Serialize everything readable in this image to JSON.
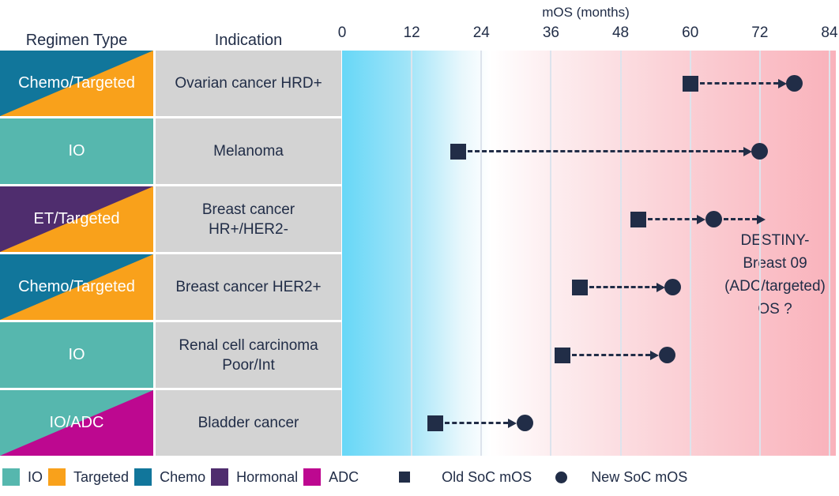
{
  "colors": {
    "io": "#56b7ae",
    "targeted": "#f9a11b",
    "chemo": "#11769b",
    "hormonal": "#4f2d6e",
    "adc": "#bd0890",
    "marker_navy": "#212d47",
    "cell_gray": "#d3d3d3",
    "gradient_left_cyan": "#67d7f7",
    "gradient_right_pink": "#f9b2bb",
    "gridline": "#dde3ec"
  },
  "table": {
    "regimen_header": "Regimen Type",
    "indication_header": "Indication",
    "rows": [
      {
        "regimen": "Chemo/Targeted",
        "color_keys": [
          "chemo",
          "targeted"
        ],
        "indication": "Ovarian cancer HRD+"
      },
      {
        "regimen": "IO",
        "color_keys": [
          "io"
        ],
        "indication": "Melanoma"
      },
      {
        "regimen": "ET/Targeted",
        "color_keys": [
          "hormonal",
          "targeted"
        ],
        "indication": "Breast cancer\nHR+/HER2-"
      },
      {
        "regimen": "Chemo/Targeted",
        "color_keys": [
          "chemo",
          "targeted"
        ],
        "indication": "Breast cancer HER2+"
      },
      {
        "regimen": "IO",
        "color_keys": [
          "io"
        ],
        "indication": "Renal cell carcinoma\nPoor/Int"
      },
      {
        "regimen": "IO/ADC",
        "color_keys": [
          "io",
          "adc"
        ],
        "indication": "Bladder cancer"
      }
    ]
  },
  "axis": {
    "title": "mOS (months)",
    "ticks": [
      0,
      12,
      24,
      36,
      48,
      60,
      72,
      84
    ],
    "max": 84
  },
  "annotation": {
    "lines": [
      "DESTINY-",
      "Breast 09",
      "(ADC/targeted)",
      "OS ?"
    ]
  },
  "legend": {
    "regimen_items": [
      {
        "label": "IO",
        "color_key": "io"
      },
      {
        "label": "Targeted",
        "color_key": "targeted"
      },
      {
        "label": "Chemo",
        "color_key": "chemo"
      },
      {
        "label": "Hormonal",
        "color_key": "hormonal"
      },
      {
        "label": "ADC",
        "color_key": "adc"
      }
    ],
    "old_label": "Old SoC mOS",
    "new_label": "New SoC mOS"
  },
  "chart_data": {
    "type": "scatter",
    "subtype": "dumbbell-arrow",
    "title": "mOS (months)",
    "xlabel": "mOS (months)",
    "xlim": [
      0,
      84
    ],
    "xticks": [
      0,
      12,
      24,
      36,
      48,
      60,
      72,
      84
    ],
    "grid": "vertical gridlines every 12 months",
    "background": "horizontal gradient cyan (low mOS) to pink (high mOS)",
    "categories": [
      "Ovarian cancer HRD+",
      "Melanoma",
      "Breast cancer HR+/HER2-",
      "Breast cancer HER2+",
      "Renal cell carcinoma Poor/Int",
      "Bladder cancer"
    ],
    "series": [
      {
        "name": "Old SoC mOS",
        "marker": "square",
        "values": [
          60,
          20,
          51,
          41,
          38,
          16
        ]
      },
      {
        "name": "New SoC mOS",
        "marker": "circle",
        "values": [
          78,
          72,
          64,
          57,
          56,
          31.5
        ]
      }
    ],
    "annotations": [
      {
        "text": "DESTINY-Breast 09 (ADC/targeted) OS ?",
        "category": "Breast cancer HR+/HER2-",
        "arrow_from_x": 64,
        "arrow_to_x": 73
      }
    ],
    "legend_position": "bottom"
  }
}
